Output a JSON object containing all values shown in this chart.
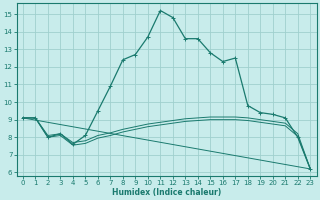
{
  "xlabel": "Humidex (Indice chaleur)",
  "xlim": [
    -0.5,
    23.5
  ],
  "ylim": [
    5.8,
    15.6
  ],
  "yticks": [
    6,
    7,
    8,
    9,
    10,
    11,
    12,
    13,
    14,
    15
  ],
  "xticks": [
    0,
    1,
    2,
    3,
    4,
    5,
    6,
    7,
    8,
    9,
    10,
    11,
    12,
    13,
    14,
    15,
    16,
    17,
    18,
    19,
    20,
    21,
    22,
    23
  ],
  "background_color": "#c8eceb",
  "grid_color": "#a0d0ce",
  "line_color": "#1a7a6e",
  "line1_x": [
    0,
    1,
    2,
    3,
    4,
    5,
    6,
    7,
    8,
    9,
    10,
    11,
    12,
    13,
    14,
    15,
    16,
    17,
    18,
    19,
    20,
    21,
    22,
    23
  ],
  "line1_y": [
    9.1,
    9.1,
    8.0,
    8.2,
    7.6,
    8.1,
    9.5,
    10.9,
    12.4,
    12.7,
    13.7,
    15.2,
    14.8,
    13.6,
    13.6,
    12.8,
    12.3,
    12.5,
    9.8,
    9.4,
    9.3,
    9.1,
    8.0,
    6.2
  ],
  "line2_x": [
    0,
    1,
    2,
    3,
    4,
    5,
    6,
    7,
    8,
    9,
    10,
    11,
    12,
    13,
    14,
    15,
    16,
    17,
    18,
    19,
    20,
    21,
    22,
    23
  ],
  "line2_y": [
    9.1,
    9.1,
    8.1,
    8.2,
    7.7,
    7.8,
    8.1,
    8.25,
    8.45,
    8.6,
    8.75,
    8.85,
    8.95,
    9.05,
    9.1,
    9.15,
    9.15,
    9.15,
    9.1,
    9.0,
    8.9,
    8.8,
    8.2,
    6.2
  ],
  "line3_x": [
    0,
    1,
    2,
    3,
    4,
    5,
    6,
    7,
    8,
    9,
    10,
    11,
    12,
    13,
    14,
    15,
    16,
    17,
    18,
    19,
    20,
    21,
    22,
    23
  ],
  "line3_y": [
    9.1,
    9.1,
    8.0,
    8.1,
    7.55,
    7.65,
    7.95,
    8.1,
    8.3,
    8.45,
    8.6,
    8.7,
    8.8,
    8.9,
    8.95,
    9.0,
    9.0,
    9.0,
    8.95,
    8.85,
    8.75,
    8.65,
    8.05,
    6.2
  ],
  "line4_x": [
    0,
    23
  ],
  "line4_y": [
    9.1,
    6.2
  ]
}
